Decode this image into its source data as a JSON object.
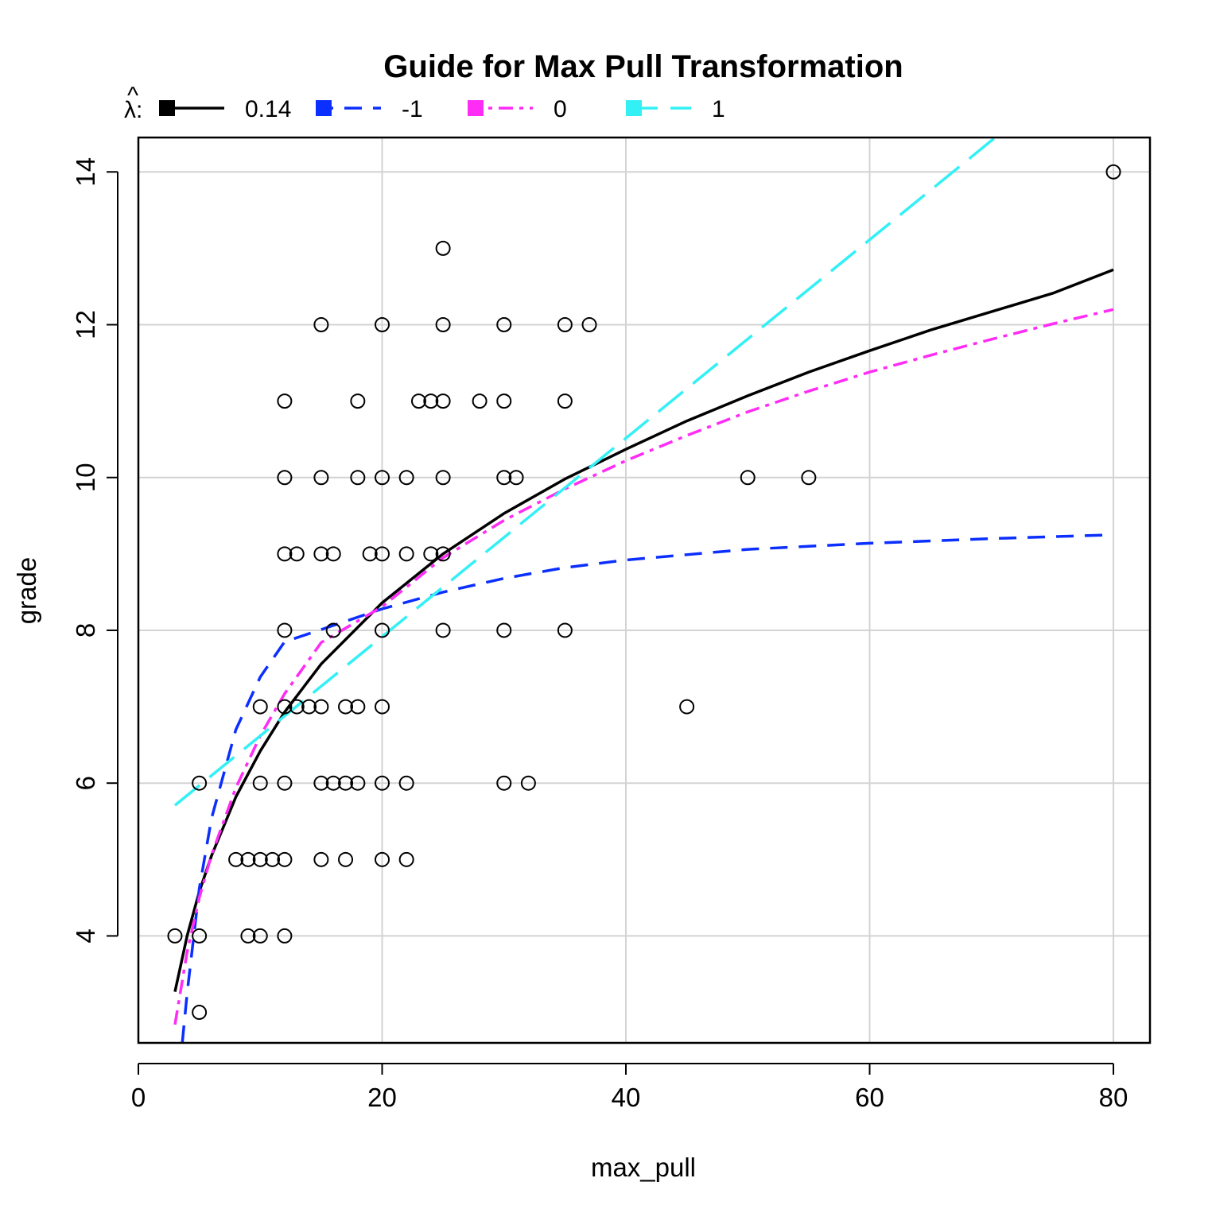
{
  "chart_data": {
    "type": "scatter",
    "title": "Guide for Max Pull Transformation",
    "xlabel": "max_pull",
    "ylabel": "grade",
    "xlim": [
      0,
      83
    ],
    "ylim": [
      2.6,
      14.45
    ],
    "xticks": [
      0,
      20,
      40,
      60,
      80
    ],
    "yticks": [
      4,
      6,
      8,
      10,
      12,
      14
    ],
    "grid": true,
    "legend_position": "top",
    "legend_prefix": "λ:",
    "legend_hat": "^",
    "points": [
      [
        3,
        4
      ],
      [
        5,
        4
      ],
      [
        9,
        4
      ],
      [
        10,
        4
      ],
      [
        12,
        4
      ],
      [
        5,
        3
      ],
      [
        8,
        5
      ],
      [
        9,
        5
      ],
      [
        10,
        5
      ],
      [
        11,
        5
      ],
      [
        12,
        5
      ],
      [
        15,
        5
      ],
      [
        17,
        5
      ],
      [
        20,
        5
      ],
      [
        22,
        5
      ],
      [
        5,
        6
      ],
      [
        10,
        6
      ],
      [
        12,
        6
      ],
      [
        15,
        6
      ],
      [
        16,
        6
      ],
      [
        17,
        6
      ],
      [
        18,
        6
      ],
      [
        20,
        6
      ],
      [
        22,
        6
      ],
      [
        30,
        6
      ],
      [
        32,
        6
      ],
      [
        10,
        7
      ],
      [
        12,
        7
      ],
      [
        13,
        7
      ],
      [
        14,
        7
      ],
      [
        15,
        7
      ],
      [
        17,
        7
      ],
      [
        18,
        7
      ],
      [
        20,
        7
      ],
      [
        45,
        7
      ],
      [
        12,
        8
      ],
      [
        16,
        8
      ],
      [
        20,
        8
      ],
      [
        25,
        8
      ],
      [
        30,
        8
      ],
      [
        35,
        8
      ],
      [
        12,
        9
      ],
      [
        13,
        9
      ],
      [
        15,
        9
      ],
      [
        16,
        9
      ],
      [
        19,
        9
      ],
      [
        20,
        9
      ],
      [
        22,
        9
      ],
      [
        24,
        9
      ],
      [
        25,
        9
      ],
      [
        12,
        10
      ],
      [
        15,
        10
      ],
      [
        18,
        10
      ],
      [
        20,
        10
      ],
      [
        22,
        10
      ],
      [
        25,
        10
      ],
      [
        30,
        10
      ],
      [
        31,
        10
      ],
      [
        50,
        10
      ],
      [
        55,
        10
      ],
      [
        12,
        11
      ],
      [
        18,
        11
      ],
      [
        23,
        11
      ],
      [
        24,
        11
      ],
      [
        25,
        11
      ],
      [
        28,
        11
      ],
      [
        30,
        11
      ],
      [
        35,
        11
      ],
      [
        15,
        12
      ],
      [
        20,
        12
      ],
      [
        25,
        12
      ],
      [
        30,
        12
      ],
      [
        35,
        12
      ],
      [
        37,
        12
      ],
      [
        25,
        13
      ],
      [
        80,
        14
      ]
    ],
    "series": [
      {
        "name": "0.14",
        "color": "#000000",
        "dash": "solid",
        "x": [
          3,
          4,
          5,
          6,
          8,
          10,
          12,
          15,
          20,
          25,
          30,
          35,
          40,
          45,
          50,
          55,
          60,
          65,
          70,
          75,
          80
        ],
        "y": [
          3.27,
          4.0,
          4.58,
          5.05,
          5.82,
          6.42,
          6.93,
          7.56,
          8.36,
          9.0,
          9.53,
          9.98,
          10.37,
          10.74,
          11.07,
          11.38,
          11.66,
          11.93,
          12.17,
          12.41,
          12.72
        ]
      },
      {
        "name": "-1",
        "color": "#0b2fff",
        "dash": "dashed",
        "x": [
          3.6,
          4,
          5,
          6,
          8,
          10,
          12,
          15,
          20,
          25,
          30,
          35,
          40,
          50,
          60,
          70,
          80
        ],
        "y": [
          2.6,
          3.25,
          4.62,
          5.54,
          6.7,
          7.39,
          7.85,
          8.01,
          8.28,
          8.5,
          8.68,
          8.82,
          8.92,
          9.06,
          9.14,
          9.2,
          9.25
        ]
      },
      {
        "name": "0",
        "color": "#ff2cf5",
        "dash": "dashdot",
        "x": [
          3,
          4,
          5,
          6,
          8,
          10,
          12,
          15,
          20,
          25,
          30,
          35,
          40,
          45,
          50,
          55,
          60,
          65,
          70,
          75,
          80
        ],
        "y": [
          2.84,
          3.79,
          4.5,
          5.06,
          5.94,
          6.62,
          7.17,
          7.84,
          8.31,
          8.95,
          9.44,
          9.85,
          10.22,
          10.55,
          10.86,
          11.13,
          11.38,
          11.6,
          11.81,
          12.01,
          12.2
        ]
      },
      {
        "name": "1",
        "color": "#33f0f5",
        "dash": "longdash",
        "x": [
          3,
          70.3
        ],
        "y": [
          5.71,
          14.45
        ]
      }
    ]
  }
}
